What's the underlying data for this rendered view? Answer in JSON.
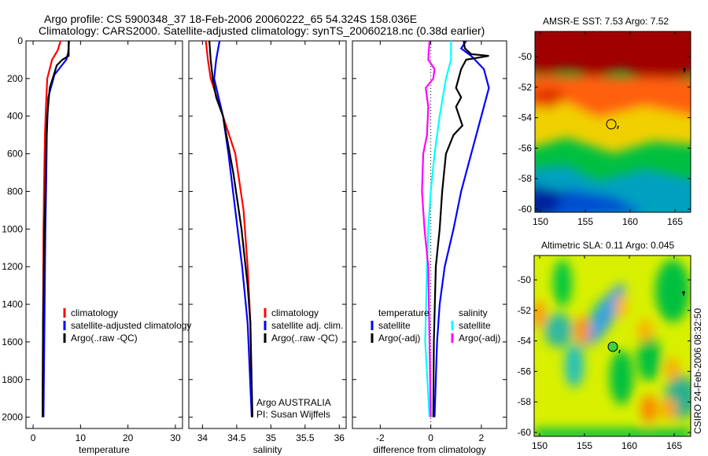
{
  "header": {
    "line1": "Argo profile: CS 5900348_37 18-Feb-2006 20060222_65 54.324S 158.036E",
    "line2": "Climatology: CARS2000. Satellite-adjusted climatology: synTS_20060218.nc (0.38d earlier)"
  },
  "colors": {
    "red": "#ff0000",
    "blue": "#0000ff",
    "black": "#000000",
    "cyan": "#00ffff",
    "magenta": "#ff00ff"
  },
  "chart_data": [
    {
      "type": "line",
      "id": "temperature",
      "xlabel": "temperature",
      "ylabel": "",
      "xlim": [
        -1.5,
        31.5
      ],
      "ylim": [
        2060,
        0
      ],
      "xticks": [
        0,
        10,
        20,
        30
      ],
      "yticks": [
        0,
        200,
        400,
        600,
        800,
        1000,
        1200,
        1400,
        1600,
        1800,
        2000
      ],
      "legend": {
        "placement": "lower-right",
        "entries": [
          "climatology",
          "satellite-adjusted climatology",
          "Argo(..raw -QC)"
        ]
      },
      "series": [
        {
          "name": "climatology",
          "color": "red",
          "points": [
            [
              0,
              5.8
            ],
            [
              50,
              5.2
            ],
            [
              100,
              4
            ],
            [
              200,
              3
            ],
            [
              300,
              2.8
            ],
            [
              500,
              2.5
            ],
            [
              800,
              2.3
            ],
            [
              1000,
              2.2
            ],
            [
              1500,
              2.1
            ],
            [
              2000,
              2
            ]
          ]
        },
        {
          "name": "satellite-adjusted climatology",
          "color": "blue",
          "points": [
            [
              0,
              7.6
            ],
            [
              60,
              7.4
            ],
            [
              100,
              7
            ],
            [
              180,
              4.5
            ],
            [
              300,
              3.2
            ],
            [
              500,
              2.9
            ],
            [
              700,
              2.8
            ],
            [
              1000,
              2.6
            ],
            [
              1500,
              2.4
            ],
            [
              2000,
              2.2
            ]
          ]
        },
        {
          "name": "Argo(..raw -QC)",
          "color": "black",
          "points": [
            [
              0,
              7.5
            ],
            [
              80,
              7.5
            ],
            [
              100,
              6.2
            ],
            [
              130,
              5
            ],
            [
              250,
              3.5
            ],
            [
              400,
              3
            ],
            [
              600,
              2.7
            ],
            [
              800,
              2.6
            ],
            [
              1000,
              2.4
            ],
            [
              1500,
              2.1
            ],
            [
              2000,
              2
            ]
          ]
        }
      ]
    },
    {
      "type": "line",
      "id": "salinity",
      "xlabel": "salinity",
      "xlim": [
        33.8,
        36.1
      ],
      "ylim": [
        2060,
        0
      ],
      "xticks": [
        34,
        34.5,
        35,
        35.5,
        36
      ],
      "legend": {
        "placement": "lower-right",
        "entries": [
          "climatology",
          "satellite adj. clim.",
          "Argo(..raw -QC)"
        ]
      },
      "annotations": [
        "Argo AUSTRALIA",
        "PI: Susan Wijffels"
      ],
      "series": [
        {
          "name": "climatology",
          "color": "red",
          "points": [
            [
              0,
              34.05
            ],
            [
              100,
              34.08
            ],
            [
              200,
              34.12
            ],
            [
              400,
              34.3
            ],
            [
              600,
              34.48
            ],
            [
              900,
              34.6
            ],
            [
              1200,
              34.66
            ],
            [
              1500,
              34.7
            ],
            [
              2000,
              34.72
            ]
          ]
        },
        {
          "name": "satellite adj. clim.",
          "color": "blue",
          "points": [
            [
              0,
              34.25
            ],
            [
              100,
              34.2
            ],
            [
              200,
              34.17
            ],
            [
              400,
              34.3
            ],
            [
              600,
              34.38
            ],
            [
              900,
              34.48
            ],
            [
              1200,
              34.58
            ],
            [
              1500,
              34.66
            ],
            [
              2000,
              34.72
            ]
          ]
        },
        {
          "name": "Argo(..raw -QC)",
          "color": "black",
          "points": [
            [
              0,
              34.1
            ],
            [
              100,
              34.12
            ],
            [
              200,
              34.15
            ],
            [
              300,
              34.2
            ],
            [
              400,
              34.3
            ],
            [
              500,
              34.35
            ],
            [
              700,
              34.45
            ],
            [
              1000,
              34.57
            ],
            [
              1300,
              34.66
            ],
            [
              1500,
              34.7
            ],
            [
              2000,
              34.73
            ]
          ]
        }
      ]
    },
    {
      "type": "line",
      "id": "difference",
      "xlabel": "difference from climatology",
      "xlim": [
        -3.1,
        3.0
      ],
      "ylim": [
        2060,
        0
      ],
      "xticks": [
        -2,
        0,
        2
      ],
      "legend": {
        "placement": "lower-center",
        "entries": [
          "temperature",
          "satellite",
          "Argo(-adj)",
          "salinity",
          "satellite",
          "Argo(-adj)"
        ]
      },
      "series": [
        {
          "name": "temperature satellite",
          "color": "blue",
          "points": [
            [
              0,
              1.4
            ],
            [
              40,
              1.2
            ],
            [
              80,
              1.6
            ],
            [
              150,
              2.1
            ],
            [
              250,
              2.3
            ],
            [
              400,
              2.0
            ],
            [
              600,
              1.6
            ],
            [
              800,
              1.2
            ],
            [
              1000,
              0.9
            ],
            [
              1200,
              0.55
            ],
            [
              1400,
              0.35
            ],
            [
              1600,
              0.25
            ],
            [
              2000,
              0.15
            ]
          ]
        },
        {
          "name": "temperature Argo(-adj)",
          "color": "black",
          "points": [
            [
              0,
              1.3
            ],
            [
              40,
              1.35
            ],
            [
              70,
              1.6
            ],
            [
              80,
              2.3
            ],
            [
              100,
              1.4
            ],
            [
              150,
              1.2
            ],
            [
              250,
              1.0
            ],
            [
              300,
              1.2
            ],
            [
              350,
              1.0
            ],
            [
              450,
              1.25
            ],
            [
              500,
              0.9
            ],
            [
              600,
              0.6
            ],
            [
              800,
              0.45
            ],
            [
              1000,
              0.35
            ],
            [
              1200,
              0.2
            ],
            [
              1600,
              0.12
            ],
            [
              2000,
              0.1
            ]
          ]
        },
        {
          "name": "salinity satellite",
          "color": "cyan",
          "points": [
            [
              0,
              0.8
            ],
            [
              100,
              0.8
            ],
            [
              200,
              0.6
            ],
            [
              400,
              0.35
            ],
            [
              600,
              0.15
            ],
            [
              800,
              0
            ],
            [
              1000,
              -0.1
            ],
            [
              1200,
              -0.15
            ],
            [
              1600,
              -0.22
            ],
            [
              2000,
              -0.05
            ]
          ]
        },
        {
          "name": "salinity Argo(-adj)",
          "color": "magenta",
          "points": [
            [
              0,
              -0.05
            ],
            [
              100,
              -0.1
            ],
            [
              150,
              0.15
            ],
            [
              200,
              0.1
            ],
            [
              250,
              -0.2
            ],
            [
              350,
              -0.1
            ],
            [
              500,
              -0.15
            ],
            [
              600,
              -0.3
            ],
            [
              800,
              -0.35
            ],
            [
              1000,
              -0.25
            ],
            [
              1200,
              -0.1
            ],
            [
              1600,
              -0.05
            ],
            [
              2000,
              0
            ]
          ]
        }
      ]
    }
  ],
  "maps": [
    {
      "title": "AMSR-E SST: 7.53 Argo: 7.52",
      "xticks": [
        "150",
        "155",
        "160",
        "165"
      ],
      "yticks": [
        "-50",
        "-52",
        "-54",
        "-56",
        "-58",
        "-60"
      ]
    },
    {
      "title": "Altimetric SLA: 0.11 Argo: 0.045",
      "xticks": [
        "150",
        "155",
        "160",
        "165"
      ],
      "yticks": [
        "-50",
        "-52",
        "-54",
        "-56",
        "-58",
        "-60"
      ]
    }
  ],
  "footer": {
    "stamp": "CSIRO 24-Feb-2006 08:32:50"
  }
}
